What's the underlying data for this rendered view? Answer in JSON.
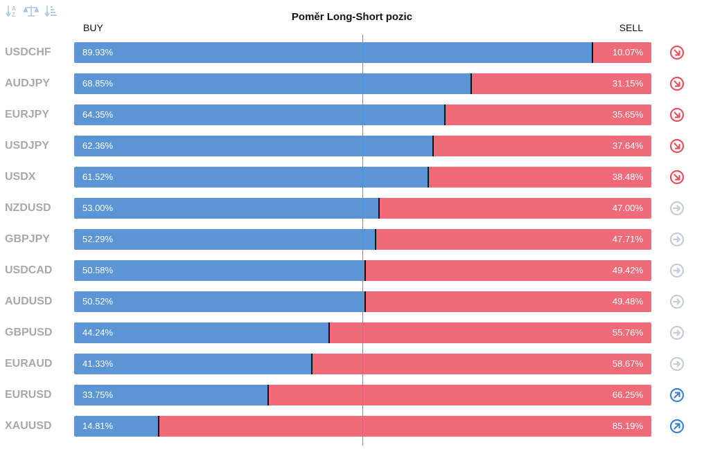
{
  "colors": {
    "buy": "#5b95d6",
    "sell": "#f06b7a",
    "down": "#e8515f",
    "neutral": "#c4ccd8",
    "up": "#3d7fd0",
    "toolbar_icon": "#a9c4e6"
  },
  "toolbar": {
    "icons": [
      "sort-alpha-icon",
      "balance-scale-icon",
      "sort-amount-icon"
    ]
  },
  "chart_data": {
    "type": "bar",
    "title": "Poměr Long-Short pozic",
    "buy_label": "BUY",
    "sell_label": "SELL",
    "xlim": [
      0,
      100
    ],
    "rows": [
      {
        "symbol": "USDCHF",
        "buy": 89.93,
        "sell": 10.07,
        "buy_text": "89.93%",
        "sell_text": "10.07%",
        "trend": "down"
      },
      {
        "symbol": "AUDJPY",
        "buy": 68.85,
        "sell": 31.15,
        "buy_text": "68.85%",
        "sell_text": "31.15%",
        "trend": "down"
      },
      {
        "symbol": "EURJPY",
        "buy": 64.35,
        "sell": 35.65,
        "buy_text": "64.35%",
        "sell_text": "35.65%",
        "trend": "down"
      },
      {
        "symbol": "USDJPY",
        "buy": 62.36,
        "sell": 37.64,
        "buy_text": "62.36%",
        "sell_text": "37.64%",
        "trend": "down"
      },
      {
        "symbol": "USDX",
        "buy": 61.52,
        "sell": 38.48,
        "buy_text": "61.52%",
        "sell_text": "38.48%",
        "trend": "down"
      },
      {
        "symbol": "NZDUSD",
        "buy": 53.0,
        "sell": 47.0,
        "buy_text": "53.00%",
        "sell_text": "47.00%",
        "trend": "neutral"
      },
      {
        "symbol": "GBPJPY",
        "buy": 52.29,
        "sell": 47.71,
        "buy_text": "52.29%",
        "sell_text": "47.71%",
        "trend": "neutral"
      },
      {
        "symbol": "USDCAD",
        "buy": 50.58,
        "sell": 49.42,
        "buy_text": "50.58%",
        "sell_text": "49.42%",
        "trend": "neutral"
      },
      {
        "symbol": "AUDUSD",
        "buy": 50.52,
        "sell": 49.48,
        "buy_text": "50.52%",
        "sell_text": "49.48%",
        "trend": "neutral"
      },
      {
        "symbol": "GBPUSD",
        "buy": 44.24,
        "sell": 55.76,
        "buy_text": "44.24%",
        "sell_text": "55.76%",
        "trend": "neutral"
      },
      {
        "symbol": "EURAUD",
        "buy": 41.33,
        "sell": 58.67,
        "buy_text": "41.33%",
        "sell_text": "58.67%",
        "trend": "neutral"
      },
      {
        "symbol": "EURUSD",
        "buy": 33.75,
        "sell": 66.25,
        "buy_text": "33.75%",
        "sell_text": "66.25%",
        "trend": "up"
      },
      {
        "symbol": "XAUUSD",
        "buy": 14.81,
        "sell": 85.19,
        "buy_text": "14.81%",
        "sell_text": "85.19%",
        "trend": "up"
      }
    ]
  }
}
